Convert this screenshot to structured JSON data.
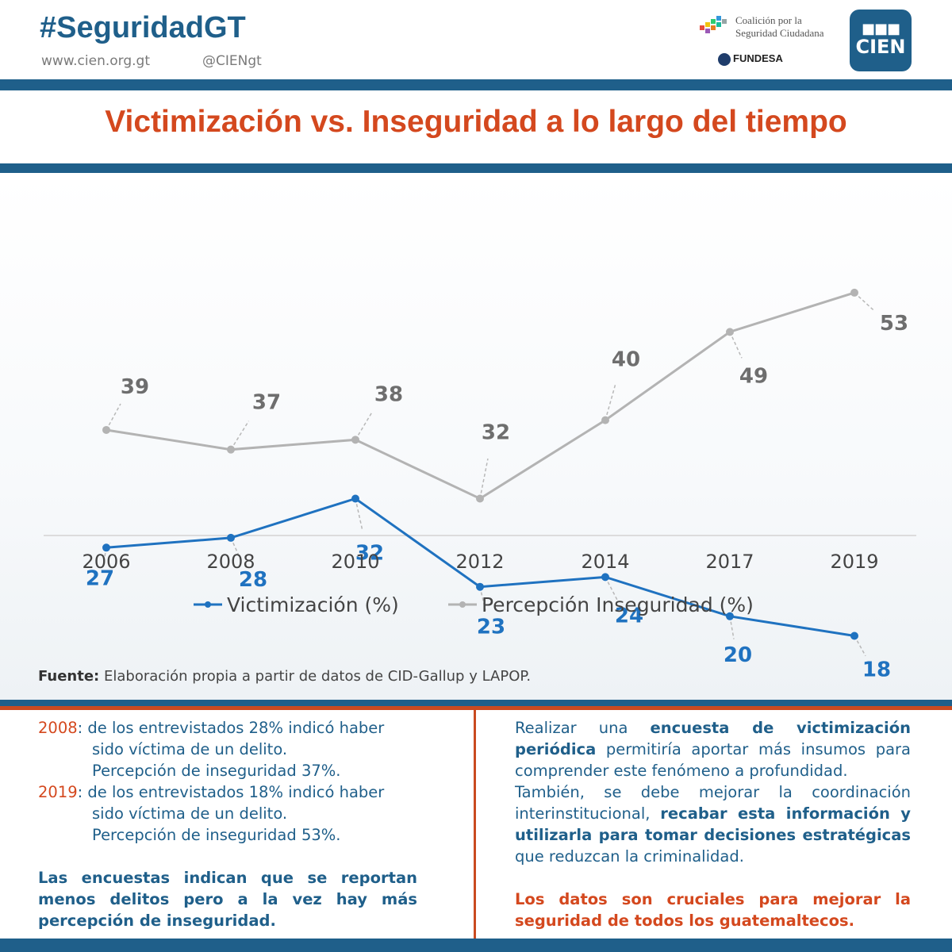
{
  "header": {
    "hashtag": "#SeguridadGT",
    "website": "www.cien.org.gt",
    "handle": "@CIENgt",
    "coalition_line1": "Coalición por la",
    "coalition_line2": "Seguridad Ciudadana",
    "fundesa": "FUNDESA",
    "cien_logo_top": "■■■",
    "cien_logo_bottom": "CIEN"
  },
  "title": "Victimización vs. Inseguridad a lo largo del tiempo",
  "colors": {
    "brand_blue": "#1f5f8a",
    "accent_orange": "#d4481e",
    "series_blue": "#1f72c0",
    "series_gray": "#b3b3b3"
  },
  "chart_data": {
    "type": "line",
    "categories": [
      "2006",
      "2008",
      "2010",
      "2012",
      "2014",
      "2017",
      "2019"
    ],
    "series": [
      {
        "name": "Victimización (%)",
        "values": [
          27,
          28,
          32,
          23,
          24,
          20,
          18
        ]
      },
      {
        "name": "Percepción Inseguridad (%)",
        "values": [
          39,
          37,
          38,
          32,
          40,
          49,
          53
        ]
      }
    ],
    "legend": [
      "Victimización (%)",
      "Percepción Inseguridad (%)"
    ],
    "legend_position": "bottom",
    "grid": false
  },
  "source": {
    "label": "Fuente:",
    "text": "Elaboración propia a partir de datos de CID-Gallup y LAPOP."
  },
  "left_panel": {
    "y2008": "2008",
    "t2008_a": ": de los entrevistados 28% indicó haber",
    "t2008_b": "sido víctima de un delito.",
    "t2008_c": "Percepción de inseguridad 37%.",
    "y2019": "2019",
    "t2019_a": ": de los entrevistados 18% indicó haber",
    "t2019_b": "sido víctima de un delito.",
    "t2019_c": "Percepción de inseguridad 53%.",
    "conclusion": "Las encuestas indican que se reportan menos delitos pero a la vez hay más percepción de inseguridad."
  },
  "right_panel": {
    "p1_a": "Realizar una ",
    "p1_b": "encuesta de victimización periódica",
    "p1_c": " permitiría aportar más insumos para comprender este fenómeno a profundidad.",
    "p2_a": "También, se debe  mejorar la coordinación interinstitucional, ",
    "p2_b": "recabar esta información y utilizarla para tomar decisiones estratégicas",
    "p2_c": " que reduzcan la criminalidad.",
    "conclusion": "Los datos son cruciales para mejorar la seguridad de todos los guatemaltecos."
  }
}
